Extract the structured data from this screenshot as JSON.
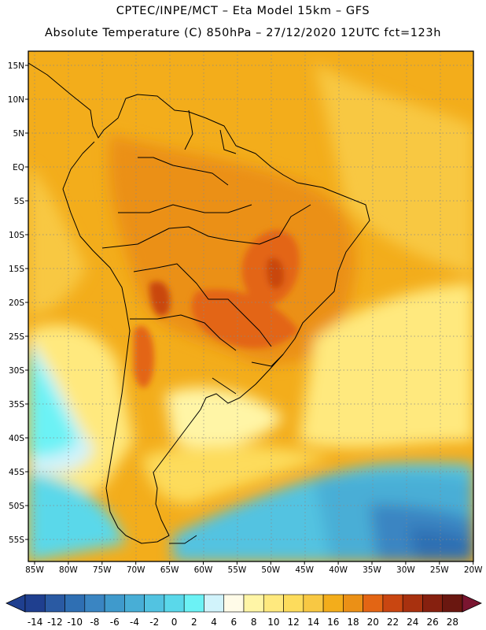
{
  "header": {
    "line1": "CPTEC/INPE/MCT –  Eta Model 15km – GFS",
    "line2": "Absolute Temperature (C) 850hPa – 27/12/2020 12UTC fct=123h"
  },
  "map": {
    "lat_labels": [
      "15N",
      "10N",
      "5N",
      "EQ",
      "5S",
      "10S",
      "15S",
      "20S",
      "25S",
      "30S",
      "35S",
      "40S",
      "45S",
      "50S",
      "55S"
    ],
    "lon_labels": [
      "85W",
      "80W",
      "75W",
      "70W",
      "65W",
      "60W",
      "55W",
      "50W",
      "45W",
      "40W",
      "35W",
      "30W",
      "25W",
      "20W"
    ]
  },
  "colorbar": {
    "labels": [
      "-14",
      "-12",
      "-10",
      "-8",
      "-6",
      "-4",
      "-2",
      "0",
      "2",
      "4",
      "6",
      "8",
      "10",
      "12",
      "14",
      "16",
      "18",
      "20",
      "22",
      "24",
      "26",
      "28"
    ],
    "colors": [
      "#1f3f8f",
      "#2a5aa3",
      "#2f6fb3",
      "#3a85c2",
      "#3f9acc",
      "#48aed6",
      "#52c3e1",
      "#5ad8ea",
      "#6cf2f5",
      "#d1f3fb",
      "#fffbe8",
      "#fff5a6",
      "#ffe97e",
      "#fddc5c",
      "#f8c843",
      "#f3ad1b",
      "#eb9016",
      "#e36514",
      "#c94611",
      "#a8310f",
      "#86200f",
      "#6a1710"
    ]
  }
}
